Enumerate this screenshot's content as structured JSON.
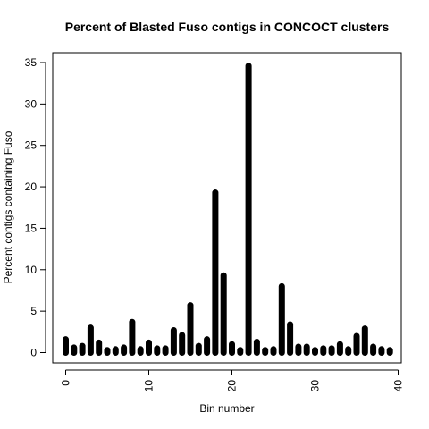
{
  "chart_data": {
    "type": "bar",
    "title": "Percent of Blasted Fuso contigs in CONCOCT clusters",
    "xlabel": "Bin number",
    "ylabel": "Percent contigs containing Fuso",
    "xlim": [
      0,
      40
    ],
    "ylim": [
      0,
      35
    ],
    "x_ticks": [
      "0",
      "10",
      "20",
      "30",
      "40"
    ],
    "y_ticks": [
      "0",
      "5",
      "10",
      "15",
      "20",
      "25",
      "30",
      "35"
    ],
    "grid": false,
    "legend": "none",
    "bar_color": "#000000",
    "x": [
      0,
      1,
      2,
      3,
      4,
      5,
      6,
      7,
      8,
      9,
      10,
      11,
      12,
      13,
      14,
      15,
      16,
      17,
      18,
      19,
      20,
      21,
      22,
      23,
      24,
      25,
      26,
      27,
      28,
      29,
      30,
      31,
      32,
      33,
      34,
      35,
      36,
      37,
      38,
      39
    ],
    "values": [
      1.6,
      0.6,
      0.8,
      3.0,
      1.2,
      0.3,
      0.4,
      0.6,
      3.7,
      0.4,
      1.2,
      0.5,
      0.5,
      2.7,
      2.1,
      5.7,
      0.8,
      1.6,
      19.3,
      9.3,
      1.0,
      0.3,
      34.6,
      1.3,
      0.3,
      0.4,
      8.0,
      3.4,
      0.7,
      0.7,
      0.3,
      0.5,
      0.5,
      1.0,
      0.4,
      2.0,
      2.9,
      0.7,
      0.4,
      0.3
    ]
  }
}
